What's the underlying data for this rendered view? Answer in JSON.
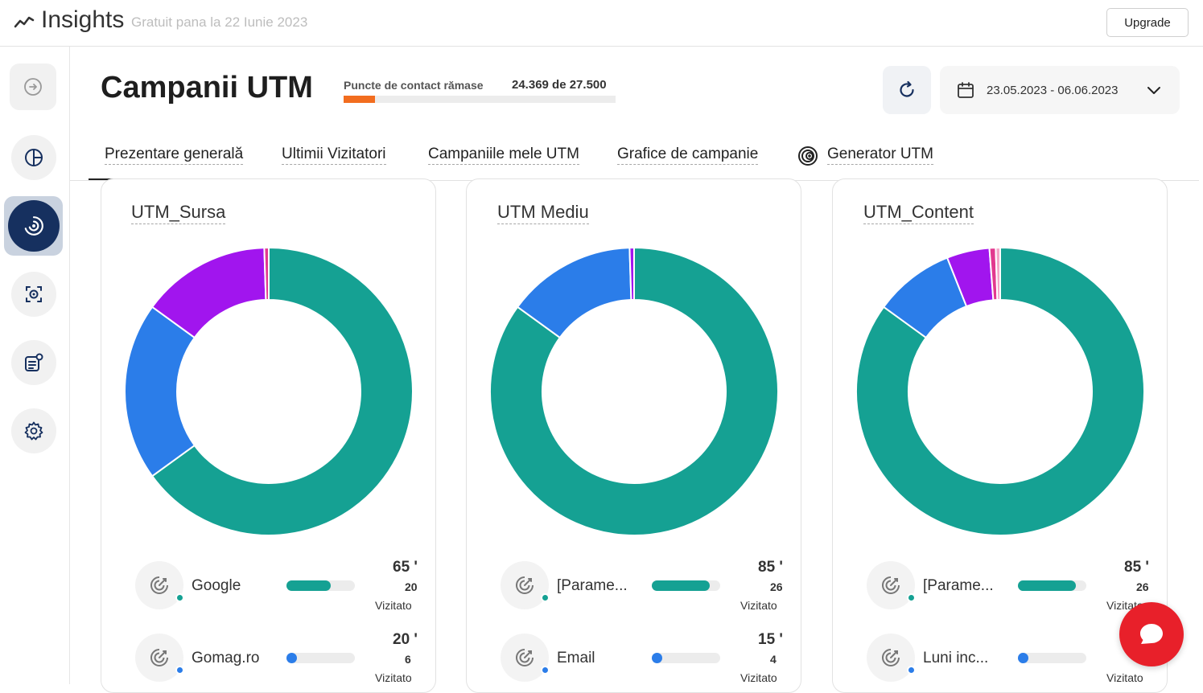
{
  "app": {
    "name": "Insights",
    "trial_text": "Gratuit pana la 22 Iunie 2023",
    "upgrade_label": "Upgrade"
  },
  "sidebar": {
    "items": [
      {
        "icon": "logout-icon"
      },
      {
        "icon": "pie-chart-icon"
      },
      {
        "icon": "utm-target-icon",
        "active": true
      },
      {
        "icon": "scan-eye-icon"
      },
      {
        "icon": "report-badge-icon"
      },
      {
        "icon": "gear-icon"
      }
    ]
  },
  "header": {
    "title": "Campanii UTM",
    "contact_label": "Puncte de contact rămase",
    "contact_value": "24.369 de 27.500",
    "contact_fraction": 0.114,
    "date_range": "23.05.2023 - 06.06.2023"
  },
  "tabs": [
    {
      "label": "Prezentare generală",
      "active": true
    },
    {
      "label": "Ultimii Vizitatori"
    },
    {
      "label": "Campaniile mele UTM"
    },
    {
      "label": "Grafice de campanie"
    },
    {
      "label": "Generator UTM"
    }
  ],
  "colors": {
    "teal": "#15a193",
    "blue": "#2b7de9",
    "purple": "#a115ee",
    "pink": "#e2398f",
    "accent_orange": "#f26d1f",
    "chat_red": "#e8202a"
  },
  "cards": [
    {
      "title": "UTM_Sursa",
      "chart_data": {
        "type": "pie",
        "donut": true,
        "slices": [
          {
            "value": 65,
            "color": "#15a193"
          },
          {
            "value": 20,
            "color": "#2b7de9"
          },
          {
            "value": 14.5,
            "color": "#a115ee"
          },
          {
            "value": 0.5,
            "color": "#e2398f"
          }
        ]
      },
      "legend": [
        {
          "name": "Google",
          "pct": "65 '",
          "count": "20",
          "unit": "Vizitato",
          "fraction": 0.65,
          "color": "#15a193"
        },
        {
          "name": "Gomag.ro",
          "pct": "20 '",
          "count": "6",
          "unit": "Vizitato",
          "fraction": 0.08,
          "color": "#2b7de9"
        }
      ]
    },
    {
      "title": "UTM Mediu",
      "chart_data": {
        "type": "pie",
        "donut": true,
        "slices": [
          {
            "value": 85,
            "color": "#15a193"
          },
          {
            "value": 14.5,
            "color": "#2b7de9"
          },
          {
            "value": 0.5,
            "color": "#a115ee"
          }
        ]
      },
      "legend": [
        {
          "name": "[Parame...",
          "pct": "85 '",
          "count": "26",
          "unit": "Vizitato",
          "fraction": 0.85,
          "color": "#15a193"
        },
        {
          "name": "Email",
          "pct": "15 '",
          "count": "4",
          "unit": "Vizitato",
          "fraction": 0.08,
          "color": "#2b7de9"
        }
      ]
    },
    {
      "title": "UTM_Content",
      "chart_data": {
        "type": "pie",
        "donut": true,
        "slices": [
          {
            "value": 85,
            "color": "#15a193"
          },
          {
            "value": 9,
            "color": "#2b7de9"
          },
          {
            "value": 4.8,
            "color": "#a115ee"
          },
          {
            "value": 0.7,
            "color": "#e2398f"
          },
          {
            "value": 0.5,
            "color": "#f5a5c8"
          }
        ]
      },
      "legend": [
        {
          "name": "[Parame...",
          "pct": "85 '",
          "count": "26",
          "unit": "Vizitato",
          "fraction": 0.85,
          "color": "#15a193"
        },
        {
          "name": "Luni inc...",
          "pct": "",
          "count": "",
          "unit": "Vizitato",
          "fraction": 0.05,
          "color": "#2b7de9"
        }
      ]
    }
  ]
}
